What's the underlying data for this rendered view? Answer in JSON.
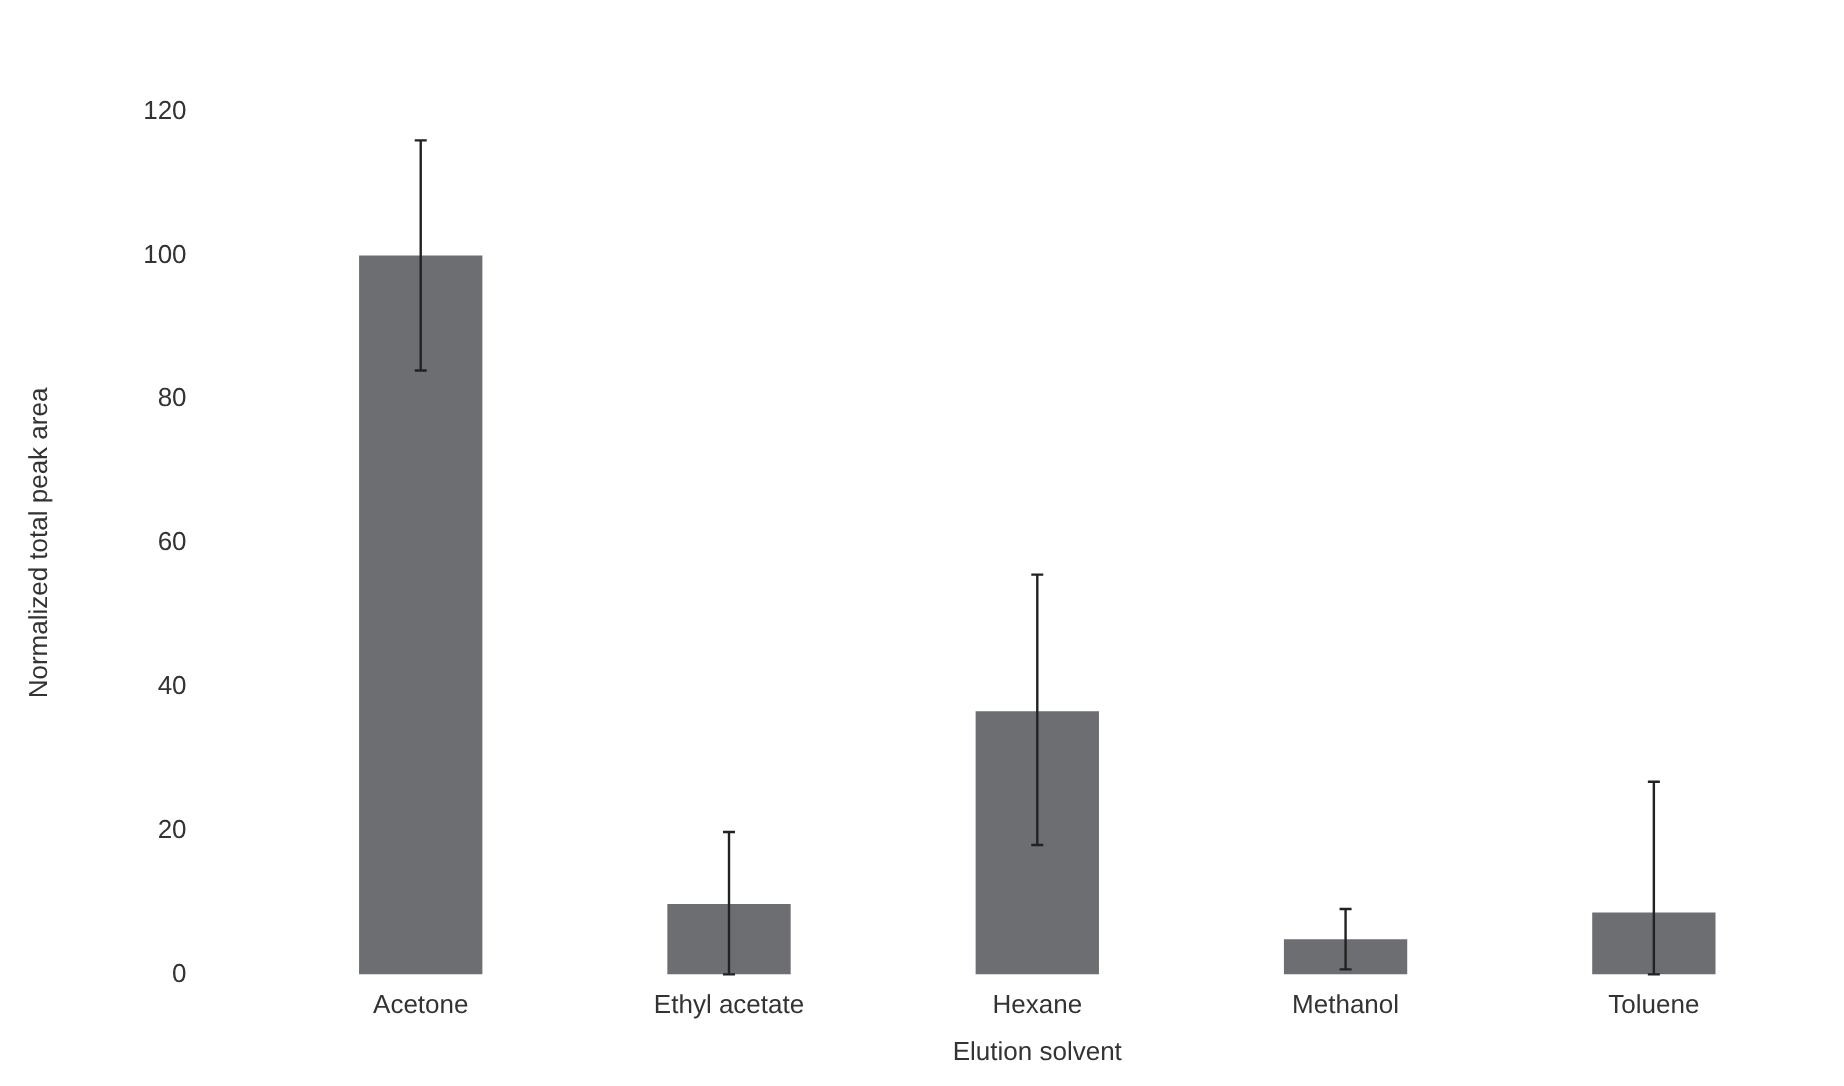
{
  "chart_data": {
    "type": "bar",
    "xlabel": "Elution solvent",
    "ylabel": "Normalized total peak area",
    "categories": [
      "Acetone",
      "Ethyl acetate",
      "Hexane",
      "Methanol",
      "Toluene"
    ],
    "values": [
      100,
      9.8,
      36.6,
      4.9,
      8.6
    ],
    "errors": [
      [
        84,
        116
      ],
      [
        0,
        19.8
      ],
      [
        18,
        55.6
      ],
      [
        0.7,
        9.1
      ],
      [
        0,
        26.8
      ]
    ],
    "color": "#6d6e71",
    "ylim": [
      0,
      120
    ],
    "yticks": [
      0,
      20,
      40,
      60,
      80,
      100,
      120
    ],
    "grid": false
  }
}
